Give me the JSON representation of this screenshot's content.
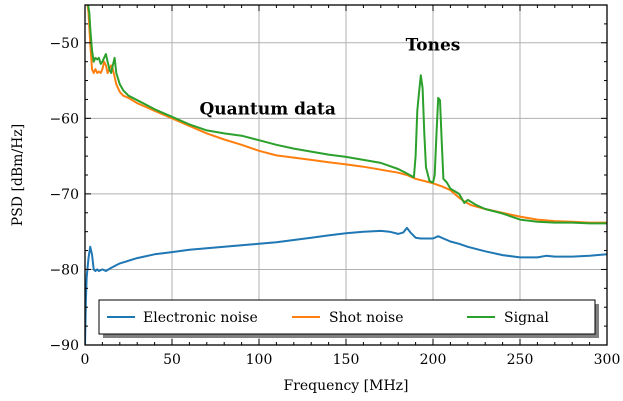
{
  "chart_data": {
    "type": "line",
    "xlabel": "Frequency [MHz]",
    "ylabel": "PSD [dBm/Hz]",
    "xlim": [
      0,
      300
    ],
    "ylim": [
      -90,
      -45
    ],
    "xticks": [
      0,
      50,
      100,
      150,
      200,
      250,
      300
    ],
    "yticks": [
      -90,
      -80,
      -70,
      -60,
      -50
    ],
    "grid": true,
    "legend_position": "bottom",
    "annotations": [
      {
        "text": "Quantum data",
        "x": 105,
        "y": -59.5
      },
      {
        "text": "Tones",
        "x": 200,
        "y": -51
      }
    ],
    "series": [
      {
        "name": "Electronic noise",
        "color": "#1f77b4",
        "x": [
          0,
          0.5,
          1,
          2,
          3,
          4,
          5,
          6,
          7,
          8,
          10,
          12,
          15,
          20,
          30,
          40,
          50,
          60,
          70,
          80,
          90,
          95,
          100,
          110,
          120,
          130,
          140,
          150,
          160,
          170,
          175,
          180,
          183,
          185,
          187,
          190,
          193,
          196,
          200,
          203,
          206,
          210,
          215,
          220,
          230,
          240,
          250,
          255,
          260,
          265,
          270,
          280,
          290,
          300
        ],
        "y": [
          -90,
          -84,
          -81,
          -78.5,
          -77,
          -78,
          -80,
          -80.2,
          -80,
          -80.2,
          -80,
          -80.2,
          -79.8,
          -79.2,
          -78.5,
          -78,
          -77.7,
          -77.4,
          -77.2,
          -77,
          -76.8,
          -76.7,
          -76.6,
          -76.4,
          -76.1,
          -75.8,
          -75.5,
          -75.2,
          -75,
          -74.9,
          -75,
          -75.3,
          -75.1,
          -74.5,
          -75.1,
          -75.8,
          -75.9,
          -75.9,
          -75.9,
          -75.6,
          -75.9,
          -76.3,
          -76.6,
          -77,
          -77.6,
          -78.1,
          -78.4,
          -78.4,
          -78.4,
          -78.2,
          -78.3,
          -78.3,
          -78.2,
          -78
        ]
      },
      {
        "name": "Shot noise",
        "color": "#ff7f0e",
        "x": [
          1.5,
          2,
          3,
          4,
          5,
          6,
          7,
          8,
          9,
          10,
          11,
          12,
          13,
          14,
          15,
          16,
          17,
          18,
          20,
          22,
          25,
          30,
          35,
          40,
          50,
          60,
          70,
          80,
          90,
          100,
          110,
          120,
          130,
          140,
          150,
          160,
          170,
          180,
          185,
          190,
          195,
          200,
          205,
          210,
          215,
          218,
          222,
          230,
          240,
          250,
          260,
          270,
          280,
          290,
          300
        ],
        "y": [
          -45,
          -46,
          -50,
          -53.5,
          -54,
          -53.5,
          -54,
          -53.8,
          -54,
          -53.5,
          -52.5,
          -53,
          -54,
          -53.5,
          -53,
          -53.5,
          -54.5,
          -55.5,
          -56.5,
          -57,
          -57.3,
          -58,
          -58.5,
          -59,
          -60,
          -61,
          -62,
          -62.8,
          -63.5,
          -64.3,
          -64.9,
          -65.2,
          -65.5,
          -65.8,
          -66.1,
          -66.4,
          -66.8,
          -67.2,
          -67.5,
          -68,
          -68.3,
          -68.6,
          -69,
          -69.5,
          -70.5,
          -71,
          -71.5,
          -72,
          -72.5,
          -73,
          -73.4,
          -73.6,
          -73.7,
          -73.8,
          -73.8
        ]
      },
      {
        "name": "Signal",
        "color": "#2ca02c",
        "x": [
          1.8,
          2.5,
          3,
          4,
          5,
          6,
          7,
          8,
          9,
          10,
          11,
          12,
          13,
          14,
          15,
          16,
          17,
          18,
          20,
          22,
          25,
          30,
          35,
          40,
          50,
          60,
          70,
          80,
          90,
          100,
          110,
          120,
          130,
          140,
          150,
          160,
          170,
          180,
          185,
          189,
          190,
          191,
          192,
          193,
          194,
          195,
          196,
          198,
          200,
          201,
          202,
          203,
          204,
          205,
          206,
          208,
          210,
          215,
          218,
          220,
          225,
          230,
          240,
          250,
          260,
          270,
          280,
          290,
          300
        ],
        "y": [
          -45,
          -46,
          -48,
          -51,
          -52.5,
          -52,
          -52.2,
          -52,
          -52.8,
          -52.5,
          -52,
          -51.5,
          -52.5,
          -53.5,
          -54,
          -53,
          -52,
          -54,
          -55.5,
          -56.3,
          -57,
          -57.6,
          -58.2,
          -58.8,
          -59.8,
          -60.8,
          -61.6,
          -62,
          -62.3,
          -62.9,
          -63.5,
          -64,
          -64.4,
          -64.8,
          -65.1,
          -65.5,
          -65.9,
          -66.7,
          -67.3,
          -67.8,
          -65,
          -59,
          -56.5,
          -54.3,
          -56,
          -62,
          -66.5,
          -68.3,
          -68.5,
          -67.5,
          -62,
          -57.3,
          -57.6,
          -63,
          -68,
          -68.5,
          -69.3,
          -70,
          -71.2,
          -70.8,
          -71.5,
          -72,
          -72.6,
          -73.4,
          -73.7,
          -73.8,
          -73.8,
          -73.9,
          -73.9
        ]
      }
    ]
  }
}
